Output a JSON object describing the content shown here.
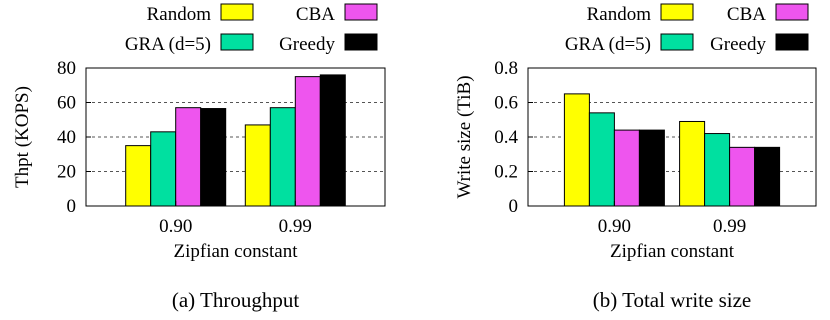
{
  "series_colors": {
    "Random": "#ffff00",
    "GRA (d=5)": "#00e0a0",
    "CBA": "#ee55ee",
    "Greedy": "#000000"
  },
  "chart_data": [
    {
      "type": "bar",
      "caption": "(a) Throughput",
      "xlabel": "Zipfian constant",
      "ylabel": "Thpt (KOPS)",
      "ylim": [
        0,
        80
      ],
      "yticks": [
        0,
        20,
        40,
        60,
        80
      ],
      "grid": "horizontal dashed",
      "categories": [
        "0.90",
        "0.99"
      ],
      "series": [
        {
          "name": "Random",
          "values": [
            35,
            47
          ]
        },
        {
          "name": "GRA (d=5)",
          "values": [
            43,
            57
          ]
        },
        {
          "name": "CBA",
          "values": [
            57,
            75
          ]
        },
        {
          "name": "Greedy",
          "values": [
            56.5,
            76
          ]
        }
      ]
    },
    {
      "type": "bar",
      "caption": "(b) Total write size",
      "xlabel": "Zipfian constant",
      "ylabel": "Write size (TiB)",
      "ylim": [
        0,
        0.8
      ],
      "yticks": [
        "0",
        "0.2",
        "0.4",
        "0.6",
        "0.8"
      ],
      "grid": "horizontal dashed",
      "categories": [
        "0.90",
        "0.99"
      ],
      "series": [
        {
          "name": "Random",
          "values": [
            0.65,
            0.49
          ]
        },
        {
          "name": "GRA (d=5)",
          "values": [
            0.54,
            0.42
          ]
        },
        {
          "name": "CBA",
          "values": [
            0.44,
            0.34
          ]
        },
        {
          "name": "Greedy",
          "values": [
            0.44,
            0.34
          ]
        }
      ]
    }
  ]
}
